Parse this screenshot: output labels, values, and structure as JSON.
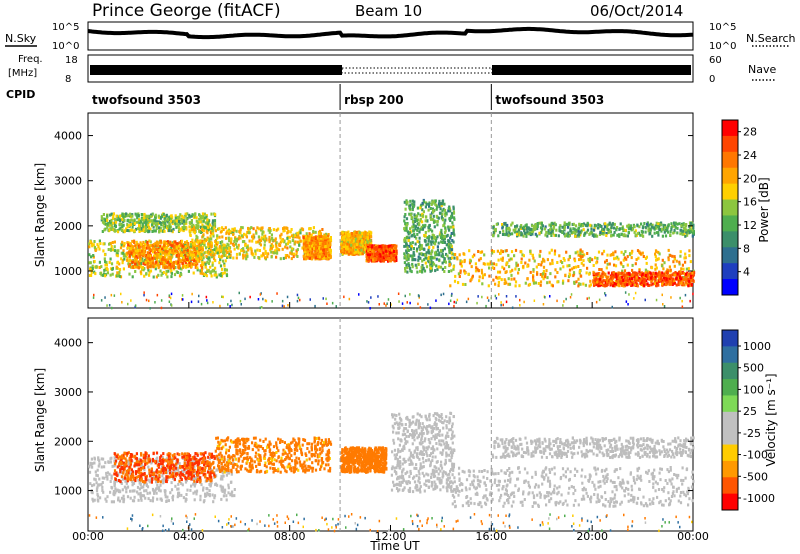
{
  "header": {
    "station": "Prince George (fitACF)",
    "beam": "Beam 10",
    "date": "06/Oct/2014"
  },
  "top_panels": {
    "nsky_label": "N.Sky",
    "nsky_ticks": [
      "10^5",
      "10^0"
    ],
    "nsearch_label": "N.Search",
    "nsearch_ticks": [
      "10^5",
      "10^0"
    ],
    "freq_label_1": "Freq.",
    "freq_label_2": "[MHz]",
    "freq_ticks": [
      "18",
      "8"
    ],
    "nave_label": "Nave",
    "nave_ticks": [
      "60",
      "0"
    ],
    "cpid_label": "CPID",
    "cpid_segments": [
      {
        "name": "twofsound 3503",
        "start_hour": 0,
        "end_hour": 10
      },
      {
        "name": "rbsp 200",
        "start_hour": 10,
        "end_hour": 16
      },
      {
        "name": "twofsound 3503",
        "start_hour": 16,
        "end_hour": 24
      }
    ]
  },
  "colors": {
    "power": [
      "#0000ff",
      "#1f3fbf",
      "#2e6f8f",
      "#3c8f6a",
      "#4fae4f",
      "#8cc63f",
      "#ffd000",
      "#ffa500",
      "#ff7700",
      "#ff4500",
      "#ff0000"
    ],
    "velocity": [
      "#2040b0",
      "#2f6fa0",
      "#3c8f6a",
      "#4fae4f",
      "#7ed957",
      "#c0c0c0",
      "#c0c0c0",
      "#ffcc00",
      "#ff9900",
      "#ff5500",
      "#ff0000"
    ],
    "ground_scatter": "#bdbdbd"
  },
  "chart_data": [
    {
      "type": "heatmap",
      "panel": "power",
      "ylabel": "Slant Range [km]",
      "ylim": [
        180,
        4500
      ],
      "yticks": [
        "4000",
        "3000",
        "2000",
        "1000"
      ],
      "xlim": [
        0,
        24
      ],
      "colorbar_label": "Power [dB]",
      "colorbar_ticks": [
        "28",
        "24",
        "20",
        "16",
        "12",
        "8",
        "4"
      ],
      "colorbar_range": [
        0,
        30
      ],
      "bands": [
        {
          "t0": 0.0,
          "t1": 5.5,
          "r0": 900,
          "r1": 1700,
          "value": 16
        },
        {
          "t0": 1.5,
          "t1": 4.5,
          "r0": 1100,
          "r1": 1700,
          "value": 22
        },
        {
          "t0": 0.5,
          "t1": 5.0,
          "r0": 1900,
          "r1": 2300,
          "value": 14
        },
        {
          "t0": 4.0,
          "t1": 9.5,
          "r0": 1300,
          "r1": 2000,
          "value": 18
        },
        {
          "t0": 8.5,
          "t1": 9.6,
          "r0": 1300,
          "r1": 1800,
          "value": 22
        },
        {
          "t0": 10.0,
          "t1": 11.2,
          "r0": 1400,
          "r1": 1900,
          "value": 20
        },
        {
          "t0": 11.0,
          "t1": 12.2,
          "r0": 1250,
          "r1": 1600,
          "value": 26
        },
        {
          "t0": 12.5,
          "t1": 14.5,
          "r0": 1000,
          "r1": 2600,
          "value": 12
        },
        {
          "t0": 14.3,
          "t1": 24.0,
          "r0": 700,
          "r1": 1500,
          "value": 20
        },
        {
          "t0": 20.0,
          "t1": 24.0,
          "r0": 700,
          "r1": 1000,
          "value": 26
        },
        {
          "t0": 16.0,
          "t1": 24.0,
          "r0": 1800,
          "r1": 2100,
          "value": 12
        }
      ]
    },
    {
      "type": "heatmap",
      "panel": "velocity",
      "ylabel": "Slant Range [km]",
      "ylim": [
        180,
        4500
      ],
      "yticks": [
        "4000",
        "3000",
        "2000",
        "1000"
      ],
      "xlim": [
        0,
        24
      ],
      "xticks": [
        "00:00",
        "04:00",
        "08:00",
        "12:00",
        "16:00",
        "20:00",
        "00:00"
      ],
      "xlabel": "Time UT",
      "colorbar_label": "Velocity [m s⁻¹]",
      "colorbar_ticks": [
        "1000",
        "500",
        "100",
        "25",
        "-25",
        "-100",
        "-500",
        "-1000"
      ],
      "bands": [
        {
          "t0": 0.0,
          "t1": 5.8,
          "r0": 800,
          "r1": 1700,
          "value": "ground"
        },
        {
          "t0": 1.0,
          "t1": 5.0,
          "r0": 1200,
          "r1": 1800,
          "value": -500
        },
        {
          "t0": 5.0,
          "t1": 9.6,
          "r0": 1400,
          "r1": 2100,
          "value": -200
        },
        {
          "t0": 10.0,
          "t1": 11.8,
          "r0": 1400,
          "r1": 1900,
          "value": -300
        },
        {
          "t0": 12.0,
          "t1": 14.5,
          "r0": 1000,
          "r1": 2600,
          "value": "ground"
        },
        {
          "t0": 14.3,
          "t1": 24.0,
          "r0": 700,
          "r1": 1500,
          "value": "ground"
        },
        {
          "t0": 16.0,
          "t1": 24.0,
          "r0": 1700,
          "r1": 2100,
          "value": "ground"
        }
      ]
    }
  ]
}
